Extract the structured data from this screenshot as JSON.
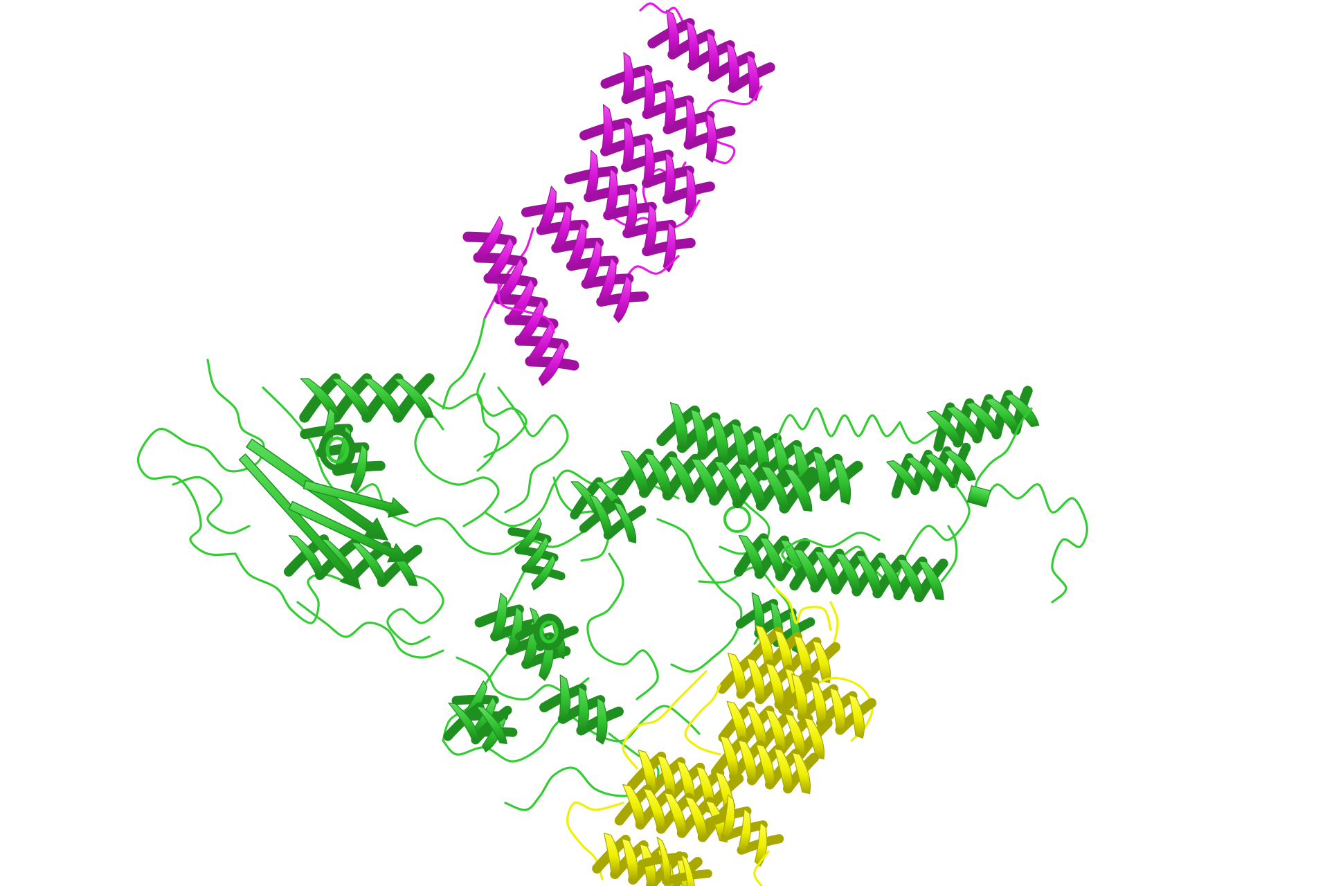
{
  "scene": {
    "kind": "protein cartoon rendering",
    "background": "#ffffff",
    "chains": [
      {
        "id": "magenta-domain",
        "color": "#e619e6",
        "shade": "#a010a0",
        "style": "alpha-helical repeat"
      },
      {
        "id": "green-chain",
        "color": "#33cc33",
        "shade": "#1f8f1f",
        "style": "mixed alpha/beta"
      },
      {
        "id": "yellow-domain",
        "color": "#f0f000",
        "shade": "#a8a800",
        "style": "alpha-helical bundle"
      }
    ]
  }
}
